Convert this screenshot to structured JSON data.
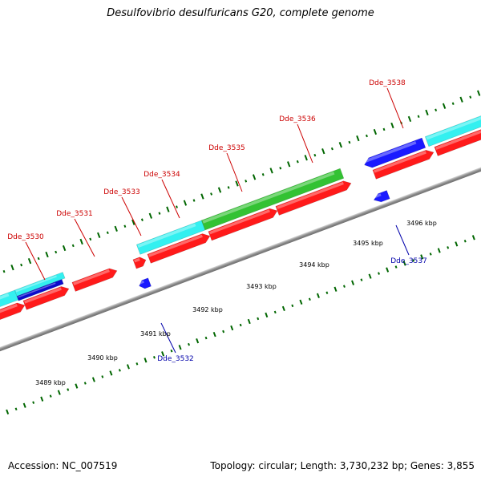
{
  "header": {
    "title": "Desulfovibrio desulfuricans G20, complete genome"
  },
  "footer": {
    "accession": "Accession: NC_007519",
    "topology": "Topology: circular; Length: 3,730,232 bp; Genes: 3,855"
  },
  "colors": {
    "forward_gene": "#ff1a1a",
    "reverse_gene": "#1a1aff",
    "cyan_feature": "#33f0f0",
    "green_feature": "#33c233",
    "dark_blue_feature": "#0b0bcc",
    "backbone": "#9a9a9a",
    "tick": "#006600",
    "label_forward": "#cc0000",
    "label_reverse": "#0000aa"
  },
  "genes_top": [
    "Dde_3530",
    "Dde_3531",
    "Dde_3533",
    "Dde_3534",
    "Dde_3535",
    "Dde_3536",
    "Dde_3538"
  ],
  "genes_bottom": [
    "Dde_3532",
    "Dde_3537"
  ],
  "scale_labels": [
    "3489 kbp",
    "3490 kbp",
    "3491 kbp",
    "3492 kbp",
    "3493 kbp",
    "3494 kbp",
    "3495 kbp",
    "3496 kbp"
  ]
}
